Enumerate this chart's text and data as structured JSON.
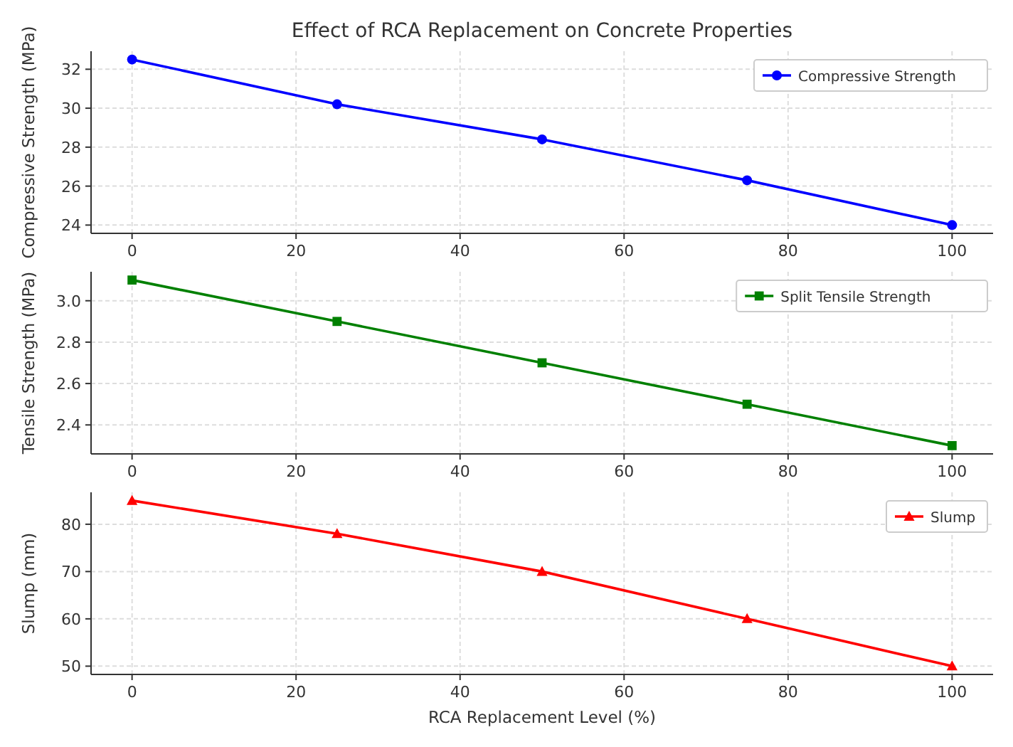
{
  "chart_data": [
    {
      "type": "line",
      "title": "Effect of RCA Replacement on Concrete Properties",
      "ylabel": "Compressive Strength (MPa)",
      "x": [
        0,
        25,
        50,
        75,
        100
      ],
      "xlim": [
        -5,
        105
      ],
      "xticks": [
        0,
        20,
        40,
        60,
        80,
        100
      ],
      "ylim": [
        23.575,
        32.925
      ],
      "yticks": [
        24,
        26,
        28,
        30,
        32
      ],
      "marker": "circle",
      "grid": true,
      "legend": "top right",
      "series": [
        {
          "name": "Compressive Strength",
          "color": "#0000ff",
          "values": [
            32.5,
            30.2,
            28.4,
            26.3,
            24.0
          ]
        }
      ]
    },
    {
      "type": "line",
      "ylabel": "Tensile Strength (MPa)",
      "x": [
        0,
        25,
        50,
        75,
        100
      ],
      "xlim": [
        -5,
        105
      ],
      "xticks": [
        0,
        20,
        40,
        60,
        80,
        100
      ],
      "ylim": [
        2.26,
        3.14
      ],
      "yticks": [
        {
          "value": 2.4,
          "label": "2.4"
        },
        {
          "value": 2.6,
          "label": "2.6"
        },
        {
          "value": 2.8,
          "label": "2.8"
        },
        {
          "value": 3.0,
          "label": "3.0"
        }
      ],
      "marker": "square",
      "grid": true,
      "legend": "top right",
      "series": [
        {
          "name": "Split Tensile Strength",
          "color": "#008000",
          "values": [
            3.1,
            2.9,
            2.7,
            2.5,
            2.3
          ]
        }
      ]
    },
    {
      "type": "line",
      "ylabel": "Slump (mm)",
      "xlabel": "RCA Replacement Level (%)",
      "x": [
        0,
        25,
        50,
        75,
        100
      ],
      "xlim": [
        -5,
        105
      ],
      "xticks": [
        0,
        20,
        40,
        60,
        80,
        100
      ],
      "ylim": [
        48.25,
        86.75
      ],
      "yticks": [
        50,
        60,
        70,
        80
      ],
      "marker": "triangle",
      "grid": true,
      "legend": "top right",
      "series": [
        {
          "name": "Slump",
          "color": "#ff0000",
          "values": [
            85,
            78,
            70,
            60,
            50
          ]
        }
      ]
    }
  ]
}
